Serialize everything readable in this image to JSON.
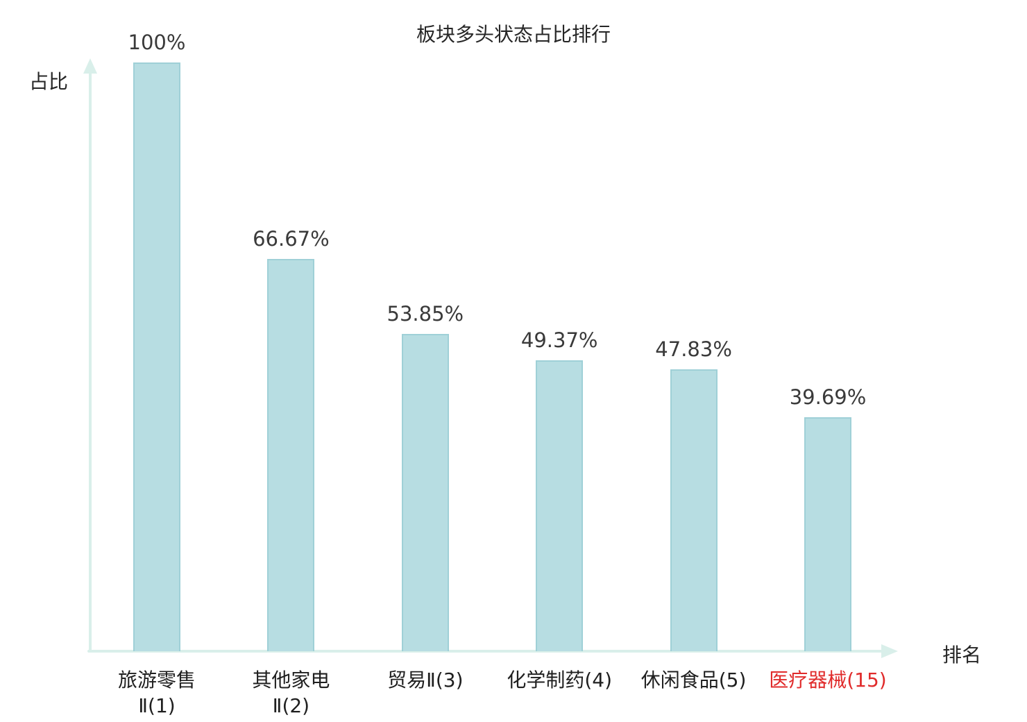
{
  "chart_data": {
    "type": "bar",
    "title": "板块多头状态占比排行",
    "xlabel": "排名",
    "ylabel": "占比",
    "categories": [
      "旅游零售\nⅡ(1)",
      "其他家电\nⅡ(2)",
      "贸易Ⅱ(3)",
      "化学制药(4)",
      "休闲食品(5)",
      "医疗器械(15)"
    ],
    "values": [
      100,
      66.67,
      53.85,
      49.37,
      47.83,
      39.69
    ],
    "value_labels": [
      "100%",
      "66.67%",
      "53.85%",
      "49.37%",
      "47.83%",
      "39.69%"
    ],
    "ylim": [
      0,
      100
    ],
    "legend": "none",
    "grid": "off",
    "bar_color": "#b7dde2",
    "bar_border_color": "#9fd0d7",
    "axis_color": "#d9efea",
    "value_label_color": "#3a3a3a",
    "category_label_color": "#1f1f1f",
    "highlight_index": 5,
    "highlight_color": "#e02b2b"
  }
}
